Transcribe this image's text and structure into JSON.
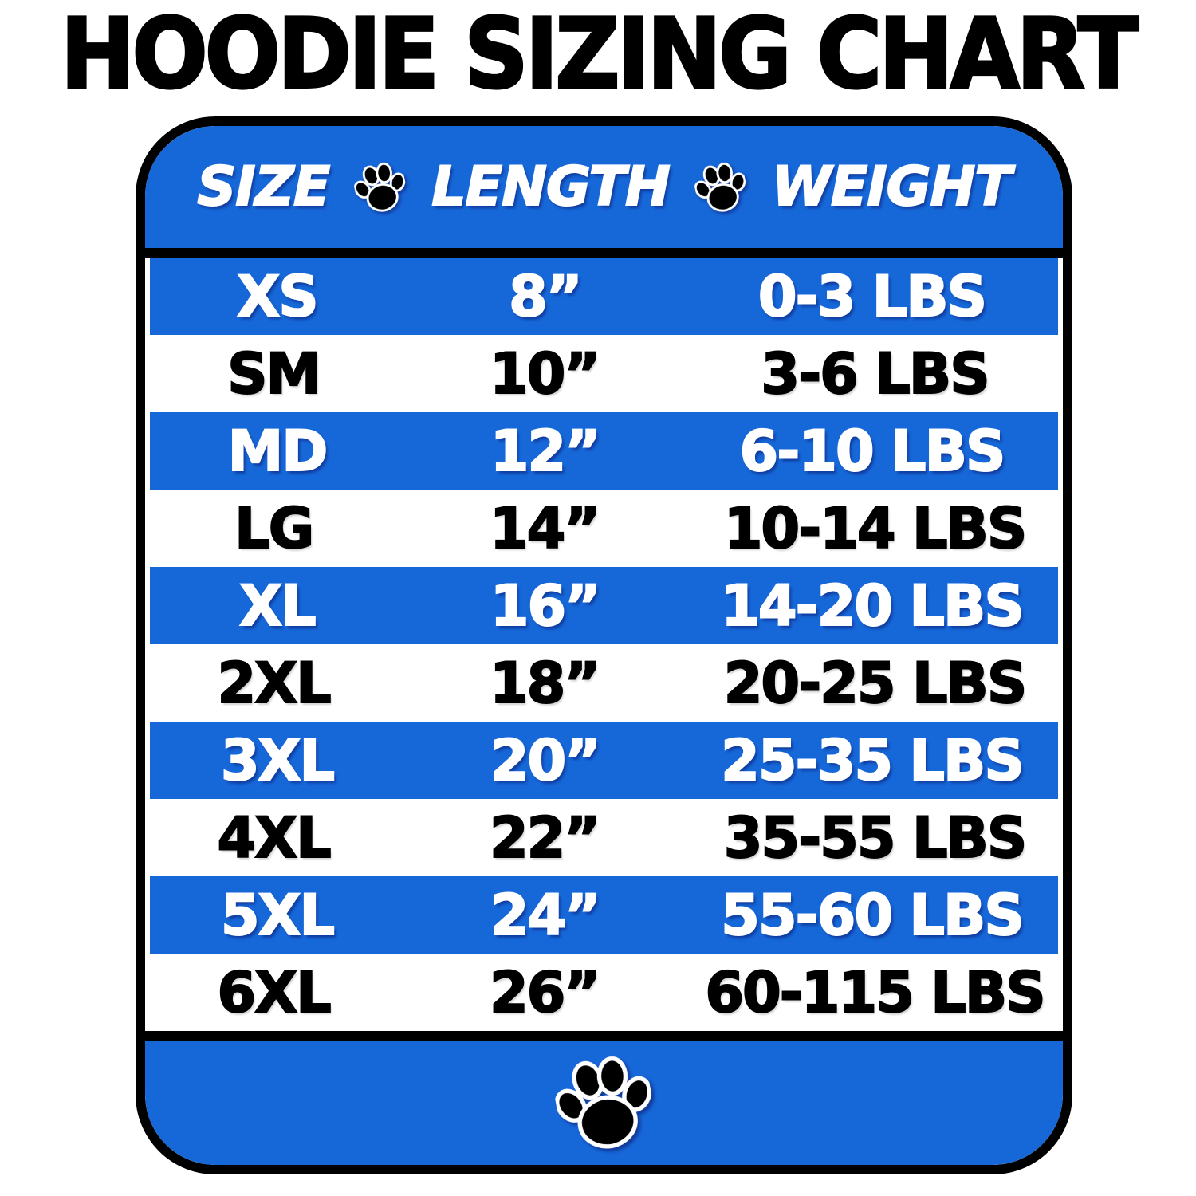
{
  "title": "HOODIE SIZING CHART",
  "colors": {
    "blue": "#1667D8",
    "black": "#000000",
    "white": "#FFFFFF"
  },
  "icons": {
    "paw": "🐾"
  },
  "chart_data": {
    "type": "table",
    "title": "HOODIE SIZING CHART",
    "columns": [
      "SIZE",
      "LENGTH",
      "WEIGHT"
    ],
    "rows": [
      {
        "size": "XS",
        "length": "8”",
        "weight": "0-3 LBS"
      },
      {
        "size": "SM",
        "length": "10”",
        "weight": "3-6 LBS"
      },
      {
        "size": "MD",
        "length": "12”",
        "weight": "6-10 LBS"
      },
      {
        "size": "LG",
        "length": "14”",
        "weight": "10-14 LBS"
      },
      {
        "size": "XL",
        "length": "16”",
        "weight": "14-20 LBS"
      },
      {
        "size": "2XL",
        "length": "18”",
        "weight": "20-25 LBS"
      },
      {
        "size": "3XL",
        "length": "20”",
        "weight": "25-35 LBS"
      },
      {
        "size": "4XL",
        "length": "22”",
        "weight": "35-55 LBS"
      },
      {
        "size": "5XL",
        "length": "24”",
        "weight": "55-60 LBS"
      },
      {
        "size": "6XL",
        "length": "26”",
        "weight": "60-115 LBS"
      }
    ]
  }
}
